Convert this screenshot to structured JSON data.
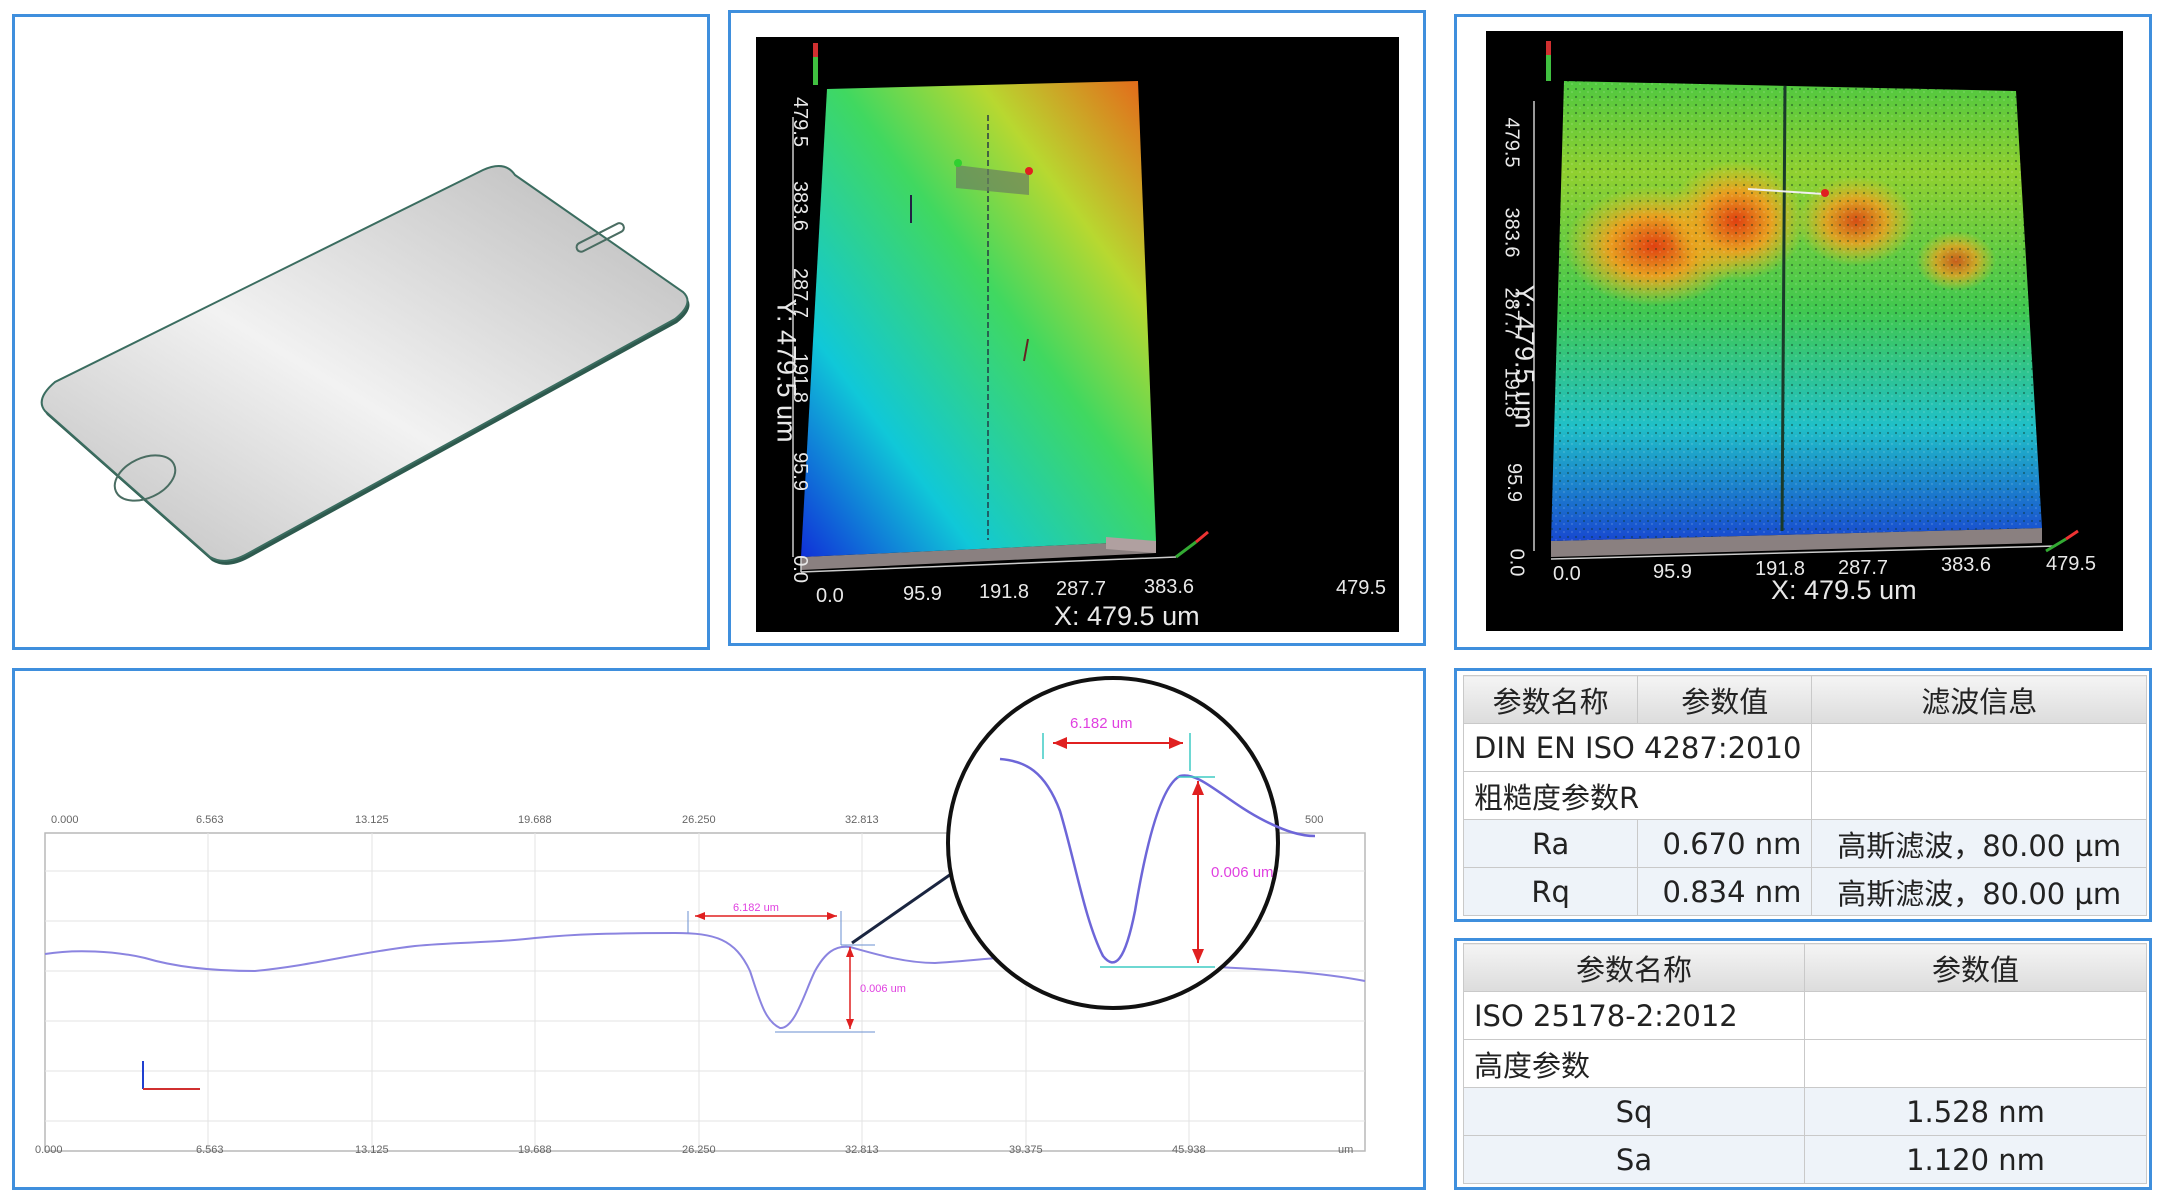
{
  "panel_3d_left": {
    "x_label": "X: 479.5 um",
    "y_label": "Y: 479.5 um",
    "x_ticks": [
      "0.0",
      "95.9",
      "191.8",
      "287.7",
      "383.6",
      "479.5"
    ],
    "y_ticks": [
      "0.0",
      "95.9",
      "191.8",
      "287.7",
      "383.6",
      "479.5"
    ]
  },
  "panel_3d_right": {
    "x_label": "X: 479.5 um",
    "y_label": "Y: 479.5 um",
    "x_ticks": [
      "0.0",
      "95.9",
      "191.8",
      "287.7",
      "383.6",
      "479.5"
    ],
    "y_ticks": [
      "0.0",
      "95.9",
      "191.8",
      "287.7",
      "383.6",
      "479.5"
    ]
  },
  "profile": {
    "x_ticks": [
      "0.000",
      "6.563",
      "13.125",
      "19.688",
      "26.250",
      "32.813",
      "39.375",
      "45.938"
    ],
    "x_unit": "um",
    "width_annotation": "6.182 um",
    "depth_annotation": "0.006 um",
    "zoom_width_annotation": "6.182 um",
    "zoom_depth_annotation": "0.006 um",
    "zoom_top_right_tick": "500",
    "line_color": "#8b84e0",
    "annotation_color": "#e040e0"
  },
  "roughness_table": {
    "headers": [
      "参数名称",
      "参数值",
      "滤波信息"
    ],
    "standard": "DIN EN ISO 4287:2010",
    "group": "粗糙度参数R",
    "rows": [
      {
        "name": "Ra",
        "value": "0.670 nm",
        "filter": "高斯滤波，80.00 µm"
      },
      {
        "name": "Rq",
        "value": "0.834 nm",
        "filter": "高斯滤波，80.00 µm"
      }
    ]
  },
  "areal_table": {
    "headers": [
      "参数名称",
      "参数值"
    ],
    "standard": "ISO 25178-2:2012",
    "group": "高度参数",
    "rows": [
      {
        "name": "Sq",
        "value": "1.528 nm"
      },
      {
        "name": "Sa",
        "value": "1.120 nm"
      }
    ]
  },
  "colors": {
    "panel_border": "#3f8fdd"
  }
}
